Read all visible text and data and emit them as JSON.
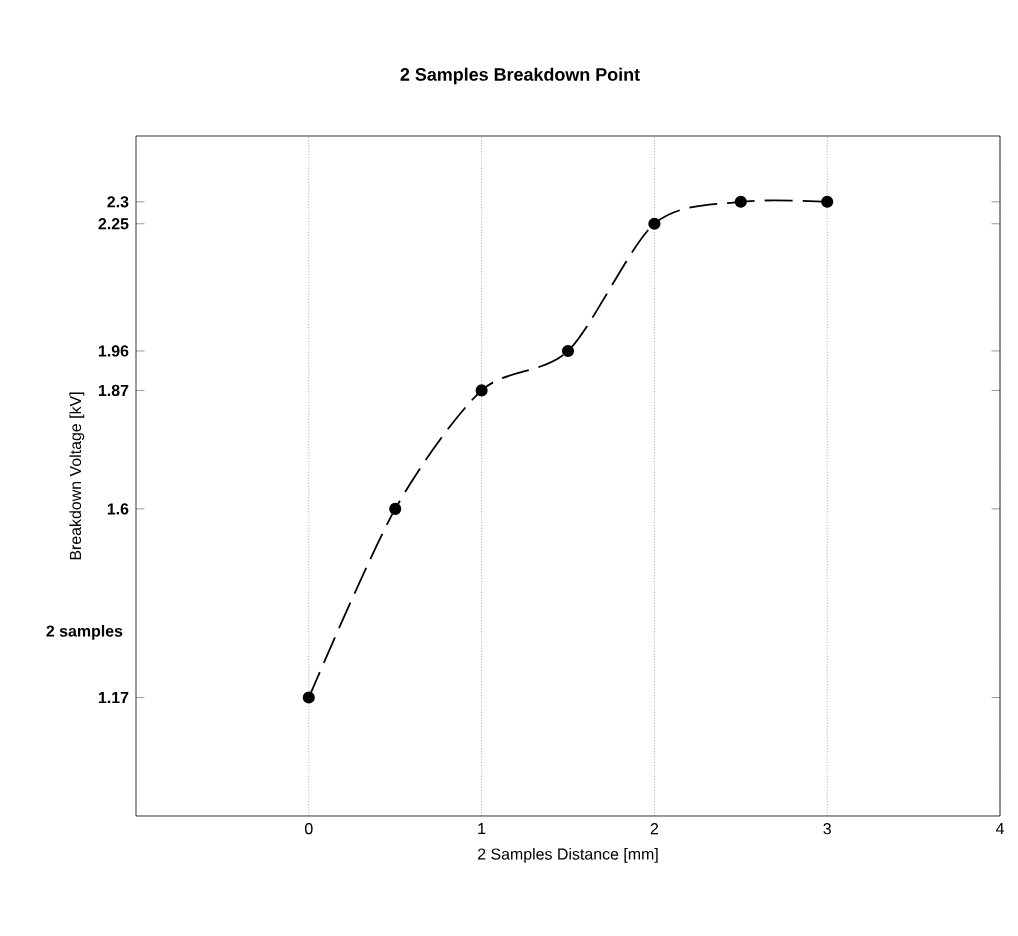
{
  "chart_data": {
    "type": "line",
    "title": "2 Samples Breakdown Point",
    "xlabel": "2 Samples Distance [mm]",
    "ylabel": "Breakdown Voltage [kV]",
    "x": [
      0,
      0.5,
      1,
      1.5,
      2,
      2.5,
      3
    ],
    "series": [
      {
        "color": "#000000",
        "values": [
          1.17,
          1.6,
          1.87,
          1.96,
          2.25,
          2.3,
          2.3
        ]
      }
    ],
    "xlim": [
      -1,
      4
    ],
    "xticks": [
      0,
      1,
      2,
      3,
      4
    ],
    "ylim": [
      0.9,
      2.45
    ],
    "yticks": [
      1.17,
      1.6,
      1.87,
      1.96,
      2.25,
      2.3
    ],
    "annotations": [
      "2 samples"
    ],
    "grid": "x",
    "marker": "circle",
    "line_style": "dashed"
  }
}
